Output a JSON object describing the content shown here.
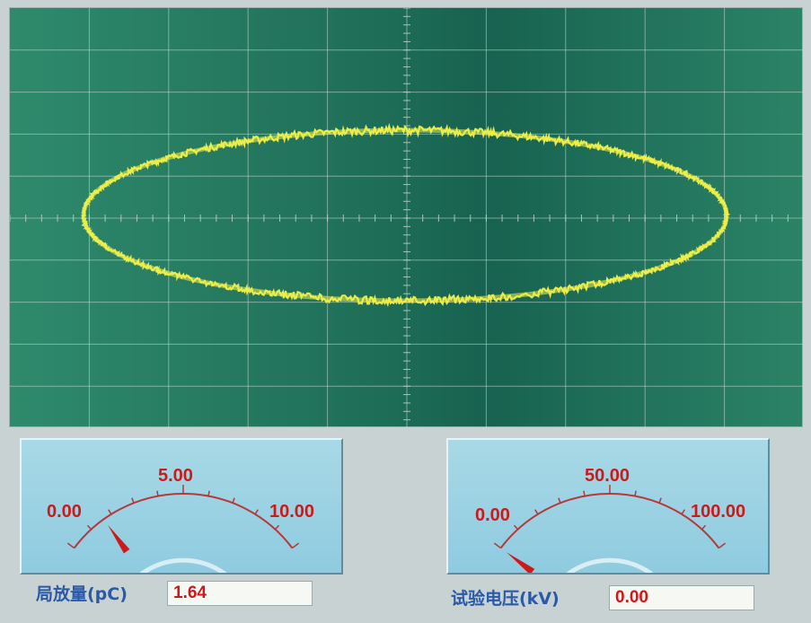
{
  "oscilloscope": {
    "background_color": "#1f6f58",
    "grid_color": "#c9d9d0",
    "trace_color": "#f2f04a"
  },
  "meter_pd": {
    "min": "0.00",
    "mid": "5.00",
    "max": "10.00",
    "fraction": 0.164,
    "label": "局放量(pC)",
    "value": "1.64"
  },
  "meter_kv": {
    "min": "0.00",
    "mid": "50.00",
    "max": "100.00",
    "fraction": 0.0,
    "label": "试验电压(kV)",
    "value": "0.00"
  },
  "colors": {
    "scale_red": "#cc1a1a",
    "label_blue": "#2a5aa6",
    "arc_color": "#b33a3a",
    "meter_bg": "#a8d9e6"
  }
}
